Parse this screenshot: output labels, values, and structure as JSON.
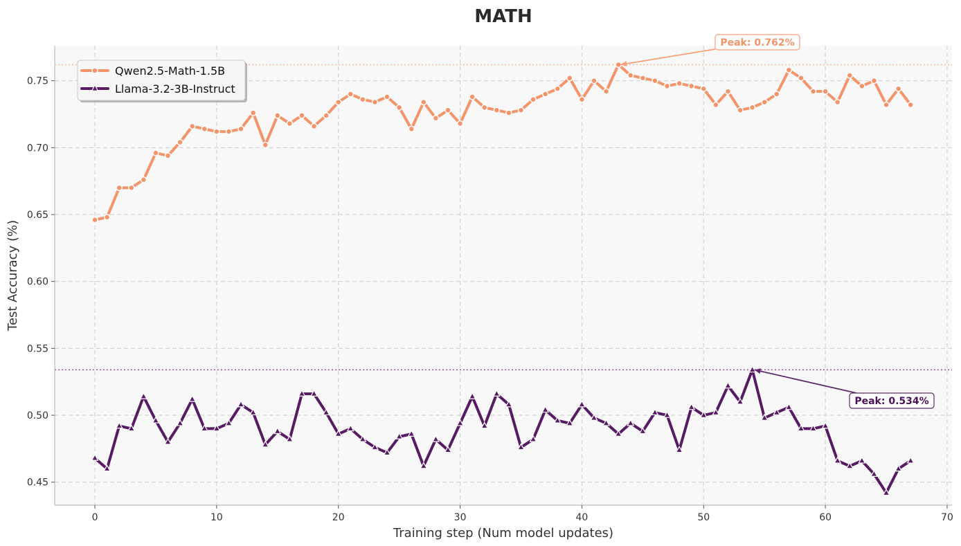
{
  "chart_data": {
    "type": "line",
    "title": "MATH",
    "xlabel": "Training step (Num model updates)",
    "ylabel": "Test Accuracy (%)",
    "xlim": [
      -3.3,
      70.4
    ],
    "ylim": [
      0.4328,
      0.7762
    ],
    "xticks": [
      0,
      10,
      20,
      30,
      40,
      50,
      60,
      70
    ],
    "yticks": [
      0.45,
      0.5,
      0.55,
      0.6,
      0.65,
      0.7,
      0.75
    ],
    "xtick_labels": [
      "0",
      "10",
      "20",
      "30",
      "40",
      "50",
      "60",
      "70"
    ],
    "ytick_labels": [
      "0.45",
      "0.50",
      "0.55",
      "0.60",
      "0.65",
      "0.70",
      "0.75"
    ],
    "grid": true,
    "legend_position": "top-left",
    "series": [
      {
        "name": "Qwen2.5-Math-1.5B",
        "color": "#f4946b",
        "marker": "circle",
        "x": [
          0,
          1,
          2,
          3,
          4,
          5,
          6,
          7,
          8,
          9,
          10,
          11,
          12,
          13,
          14,
          15,
          16,
          17,
          18,
          19,
          20,
          21,
          22,
          23,
          24,
          25,
          26,
          27,
          28,
          29,
          30,
          31,
          32,
          33,
          34,
          35,
          36,
          37,
          38,
          39,
          40,
          41,
          42,
          43,
          44,
          45,
          46,
          47,
          48,
          49,
          50,
          51,
          52,
          53,
          54,
          55,
          56,
          57,
          58,
          59,
          60,
          61,
          62,
          63,
          64,
          65,
          66,
          67
        ],
        "values": [
          0.646,
          0.648,
          0.67,
          0.67,
          0.676,
          0.696,
          0.694,
          0.704,
          0.716,
          0.714,
          0.712,
          0.712,
          0.714,
          0.726,
          0.702,
          0.724,
          0.718,
          0.724,
          0.716,
          0.724,
          0.734,
          0.74,
          0.736,
          0.734,
          0.738,
          0.73,
          0.714,
          0.734,
          0.722,
          0.728,
          0.718,
          0.738,
          0.73,
          0.728,
          0.726,
          0.728,
          0.736,
          0.74,
          0.744,
          0.752,
          0.736,
          0.75,
          0.742,
          0.762,
          0.754,
          0.752,
          0.75,
          0.746,
          0.748,
          0.746,
          0.744,
          0.732,
          0.742,
          0.728,
          0.73,
          0.734,
          0.74,
          0.758,
          0.752,
          0.742,
          0.742,
          0.734,
          0.754,
          0.746,
          0.75,
          0.732,
          0.744,
          0.732
        ],
        "peak": {
          "x": 43,
          "y": 0.762,
          "label": "Peak: 0.762%"
        }
      },
      {
        "name": "Llama-3.2-3B-Instruct",
        "color": "#571b63",
        "marker": "triangle",
        "x": [
          0,
          1,
          2,
          3,
          4,
          5,
          6,
          7,
          8,
          9,
          10,
          11,
          12,
          13,
          14,
          15,
          16,
          17,
          18,
          19,
          20,
          21,
          22,
          23,
          24,
          25,
          26,
          27,
          28,
          29,
          30,
          31,
          32,
          33,
          34,
          35,
          36,
          37,
          38,
          39,
          40,
          41,
          42,
          43,
          44,
          45,
          46,
          47,
          48,
          49,
          50,
          51,
          52,
          53,
          54,
          55,
          56,
          57,
          58,
          59,
          60,
          61,
          62,
          63,
          64,
          65,
          66,
          67
        ],
        "values": [
          0.468,
          0.46,
          0.492,
          0.49,
          0.514,
          0.496,
          0.48,
          0.494,
          0.512,
          0.49,
          0.49,
          0.494,
          0.508,
          0.502,
          0.478,
          0.488,
          0.482,
          0.516,
          0.516,
          0.502,
          0.486,
          0.49,
          0.482,
          0.476,
          0.472,
          0.484,
          0.486,
          0.462,
          0.482,
          0.474,
          0.494,
          0.514,
          0.492,
          0.516,
          0.508,
          0.476,
          0.482,
          0.504,
          0.496,
          0.494,
          0.508,
          0.498,
          0.494,
          0.486,
          0.494,
          0.488,
          0.502,
          0.5,
          0.474,
          0.506,
          0.5,
          0.502,
          0.522,
          0.51,
          0.534,
          0.498,
          0.502,
          0.506,
          0.49,
          0.49,
          0.492,
          0.466,
          0.462,
          0.466,
          0.456,
          0.442,
          0.46,
          0.466
        ],
        "peak": {
          "x": 54,
          "y": 0.534,
          "label": "Peak: 0.534%"
        }
      }
    ]
  }
}
